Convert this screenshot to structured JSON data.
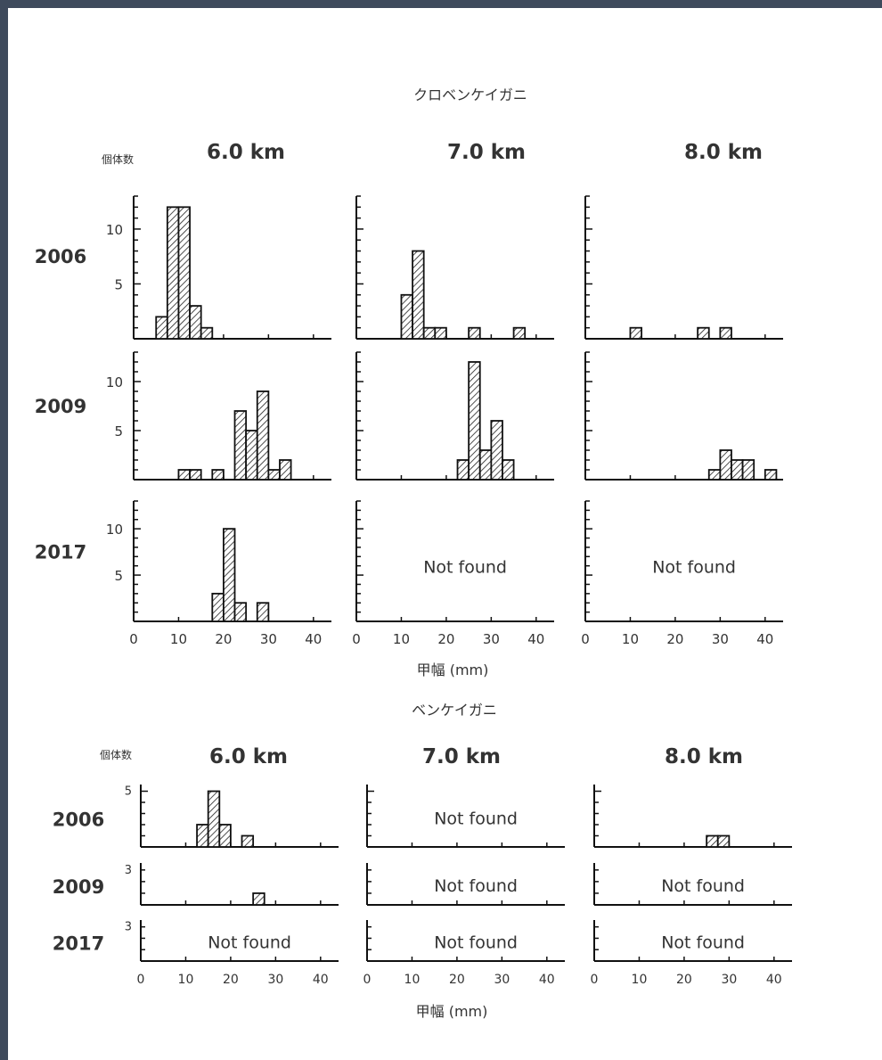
{
  "chart_data": [
    {
      "type": "bar",
      "title": "クロベンケイガニ",
      "ylabel": "個体数",
      "xlabel": "甲幅 (mm)",
      "columns": [
        "6.0 km",
        "7.0 km",
        "8.0 km"
      ],
      "rows": [
        "2006",
        "2009",
        "2017"
      ],
      "xlim": [
        0,
        44
      ],
      "x_ticks": [
        "0",
        "10",
        "20",
        "30",
        "40"
      ],
      "ylim": [
        0,
        13
      ],
      "y_ticks": [
        "5",
        "10"
      ],
      "bin_width": 2.5,
      "bars": [
        [
          [
            [
              5,
              2
            ],
            [
              7.5,
              12
            ],
            [
              10,
              12
            ],
            [
              12.5,
              3
            ],
            [
              15,
              1
            ]
          ],
          [
            [
              10,
              4
            ],
            [
              12.5,
              8
            ],
            [
              15,
              1
            ],
            [
              17.5,
              1
            ],
            [
              25,
              1
            ],
            [
              35,
              1
            ]
          ],
          [
            [
              10,
              1
            ],
            [
              25,
              1
            ],
            [
              30,
              1
            ]
          ]
        ],
        [
          [
            [
              10,
              1
            ],
            [
              12.5,
              1
            ],
            [
              17.5,
              1
            ],
            [
              22.5,
              7
            ],
            [
              25,
              5
            ],
            [
              27.5,
              9
            ],
            [
              30,
              1
            ],
            [
              32.5,
              2
            ]
          ],
          [
            [
              22.5,
              2
            ],
            [
              25,
              12
            ],
            [
              27.5,
              3
            ],
            [
              30,
              6
            ],
            [
              32.5,
              2
            ]
          ],
          [
            [
              27.5,
              1
            ],
            [
              30,
              3
            ],
            [
              32.5,
              2
            ],
            [
              35,
              2
            ],
            [
              40,
              1
            ]
          ]
        ],
        [
          [
            [
              17.5,
              3
            ],
            [
              20,
              10
            ],
            [
              22.5,
              2
            ],
            [
              27.5,
              2
            ]
          ],
          [],
          []
        ]
      ],
      "empty_label": "Not found",
      "not_found": [
        [
          false,
          false,
          false
        ],
        [
          false,
          false,
          false
        ],
        [
          false,
          true,
          true
        ]
      ]
    },
    {
      "type": "bar",
      "title": "ベンケイガニ",
      "ylabel": "個体数",
      "xlabel": "甲幅 (mm)",
      "columns": [
        "6.0 km",
        "7.0 km",
        "8.0 km"
      ],
      "rows": [
        "2006",
        "2009",
        "2017"
      ],
      "xlim": [
        0,
        44
      ],
      "x_ticks": [
        "0",
        "10",
        "20",
        "30",
        "40"
      ],
      "y_tick_labels": [
        "5",
        "3",
        "3"
      ],
      "bin_width": 2.5,
      "bars": [
        [
          [
            [
              12.5,
              2
            ],
            [
              15,
              5
            ],
            [
              17.5,
              2
            ],
            [
              22.5,
              1
            ]
          ],
          [],
          [
            [
              25,
              1
            ],
            [
              27.5,
              1
            ]
          ]
        ],
        [
          [
            [
              25,
              1
            ]
          ],
          [],
          []
        ],
        [
          [],
          [],
          []
        ]
      ],
      "empty_label": "Not found",
      "not_found": [
        [
          false,
          true,
          false
        ],
        [
          false,
          true,
          true
        ],
        [
          true,
          true,
          true
        ]
      ]
    }
  ]
}
